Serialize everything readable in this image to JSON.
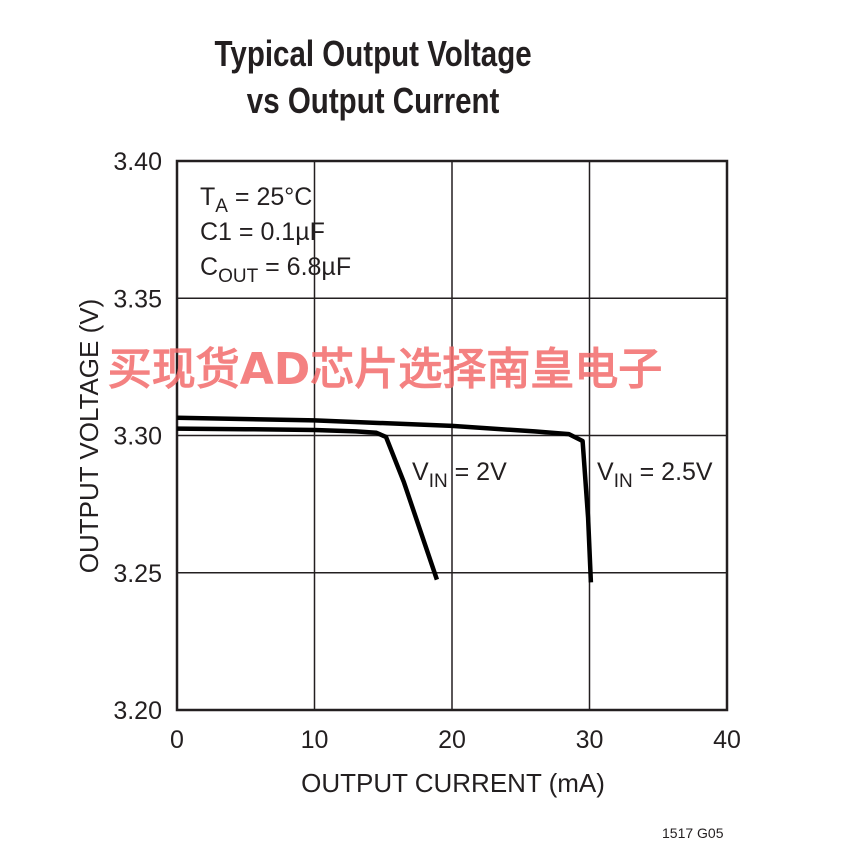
{
  "chart_data": {
    "type": "line",
    "title_line1": "Typical Output Voltage",
    "title_line2": "vs Output Current",
    "xlabel": "OUTPUT CURRENT (mA)",
    "ylabel": "OUTPUT VOLTAGE (V)",
    "xlim": [
      0,
      40
    ],
    "ylim": [
      3.2,
      3.4
    ],
    "xticks": [
      "0",
      "10",
      "20",
      "30",
      "40"
    ],
    "yticks": [
      "3.40",
      "3.35",
      "3.30",
      "3.25",
      "3.20"
    ],
    "grid": true,
    "conditions": {
      "ta": "T",
      "ta_sub": "A",
      "ta_val": " = 25°C",
      "c1": "C1 = 0.1µF",
      "cout": "C",
      "cout_sub": "OUT",
      "cout_val": " = 6.8µF"
    },
    "series": [
      {
        "name": "VIN = 2V",
        "label_main": "V",
        "label_sub": "IN",
        "label_val": " = 2V",
        "x": [
          0,
          5,
          10,
          13,
          14.5,
          15.2,
          16.5,
          18.9
        ],
        "y": [
          3.3025,
          3.3023,
          3.302,
          3.3015,
          3.301,
          3.2995,
          3.283,
          3.2475
        ]
      },
      {
        "name": "VIN = 2.5V",
        "label_main": "V",
        "label_sub": "IN",
        "label_val": " = 2.5V",
        "x": [
          0,
          10,
          20,
          26,
          28.5,
          29.5,
          29.9,
          30.1
        ],
        "y": [
          3.3065,
          3.3055,
          3.3035,
          3.3015,
          3.3005,
          3.298,
          3.27,
          3.2465
        ]
      }
    ]
  },
  "figure_code": "1517 G05",
  "watermark": "买现货AD芯片选择南皇电子"
}
